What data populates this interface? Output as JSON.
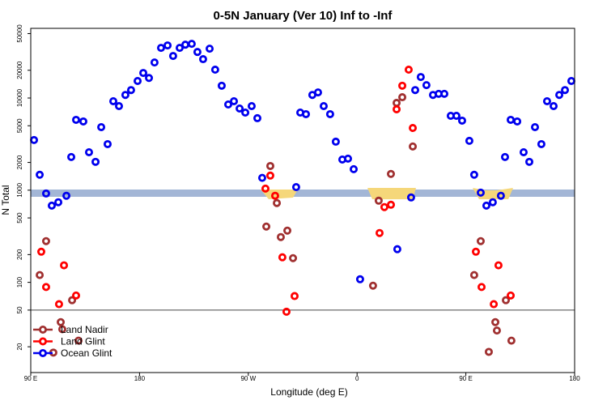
{
  "chart_data": {
    "type": "scatter",
    "title": "0-5N January (Ver 10)   Inf to -Inf",
    "x_label": "Longitude (deg E)",
    "y_label": "N Total",
    "xlim": [
      90,
      540
    ],
    "xticks": [
      {
        "value": 90,
        "label": "90 E"
      },
      {
        "value": 180,
        "label": "180"
      },
      {
        "value": 270,
        "label": "90 W"
      },
      {
        "value": 360,
        "label": "0"
      },
      {
        "value": 450,
        "label": "90 E"
      },
      {
        "value": 540,
        "label": "180"
      }
    ],
    "ylim": [
      10.5,
      57000
    ],
    "yticks": [
      20,
      50,
      100,
      200,
      500,
      1000,
      2000,
      5000,
      10000,
      20000,
      50000
    ],
    "log_y": true,
    "reference_line": 50,
    "legend": "bottom-left",
    "series": [
      {
        "name": "Land Nadir",
        "color": "#a03030",
        "x": [
          97.4,
          102.7,
          108.7,
          114.8,
          116.1,
          124.2,
          129.5,
          284.9,
          288.2,
          293.6,
          296.9,
          302.3,
          307.0,
          373.2,
          377.9,
          388.0,
          392.7,
          397.4,
          406.1,
          456.9,
          462.3,
          469.0,
          474.4,
          475.7,
          483.1,
          487.7
        ],
        "values": [
          120,
          280,
          17.3,
          37,
          31,
          64,
          23.3,
          403,
          1830,
          725,
          310,
          364,
          183,
          92,
          769,
          1500,
          8850,
          10200,
          2980,
          120,
          280,
          17.6,
          37,
          30,
          64,
          23.3
        ]
      },
      {
        "name": "Land Glint",
        "color": "#ff0000",
        "x": [
          98.7,
          102.7,
          113.4,
          117.5,
          127.5,
          284.2,
          288.2,
          292.2,
          298.2,
          301.6,
          308.3,
          378.6,
          382.6,
          388.0,
          392.7,
          397.4,
          402.7,
          406.1,
          458.3,
          463.0,
          473.1,
          477.0,
          487.1
        ],
        "values": [
          215,
          89,
          58,
          153,
          72,
          1040,
          1440,
          870,
          187,
          48,
          71,
          343,
          655,
          695,
          7540,
          13600,
          20300,
          4730,
          215,
          89,
          58,
          153,
          72
        ]
      },
      {
        "name": "Ocean Glint",
        "color": "#0000ee",
        "x": [
          92.7,
          97.4,
          102.7,
          107.4,
          112.8,
          119.5,
          123.5,
          127.5,
          133.5,
          138.2,
          143.6,
          148.3,
          153.6,
          158.3,
          163.0,
          168.3,
          173.0,
          178.4,
          183.1,
          187.8,
          192.4,
          197.8,
          203.2,
          207.8,
          213.2,
          217.9,
          223.2,
          227.9,
          232.6,
          238.0,
          242.6,
          248.0,
          253.4,
          258.1,
          262.8,
          267.5,
          272.8,
          277.5,
          281.5,
          309.6,
          313.0,
          317.7,
          323.0,
          327.7,
          332.4,
          337.7,
          342.4,
          347.8,
          352.5,
          357.2,
          362.5,
          393.3,
          404.7,
          408.1,
          412.7,
          417.4,
          422.8,
          427.5,
          432.2,
          437.5,
          442.2,
          446.9,
          452.9,
          456.9,
          462.3,
          467.0,
          472.3,
          479.0,
          482.4,
          487.1,
          492.5,
          497.8,
          502.5,
          507.2,
          512.5,
          517.2,
          522.6,
          527.3,
          532.0,
          537.3
        ],
        "values": [
          3500,
          1470,
          920,
          680,
          740,
          870,
          2290,
          5800,
          5570,
          2580,
          2030,
          4830,
          3160,
          9230,
          8170,
          10800,
          12200,
          15300,
          18700,
          16500,
          24300,
          35000,
          37200,
          28600,
          35000,
          37900,
          38700,
          31600,
          26400,
          34300,
          20300,
          13600,
          8510,
          9230,
          7690,
          6950,
          8170,
          6040,
          1360,
          1080,
          6950,
          6680,
          10800,
          11500,
          8170,
          6680,
          3360,
          2150,
          2200,
          1690,
          108,
          229,
          834,
          12200,
          16900,
          13800,
          10800,
          11100,
          11100,
          6410,
          6410,
          5680,
          3430,
          1470,
          940,
          680,
          740,
          870,
          2290,
          5800,
          5570,
          2580,
          2030,
          4830,
          3160,
          9230,
          8170,
          10800,
          12200,
          15300
        ]
      }
    ]
  }
}
